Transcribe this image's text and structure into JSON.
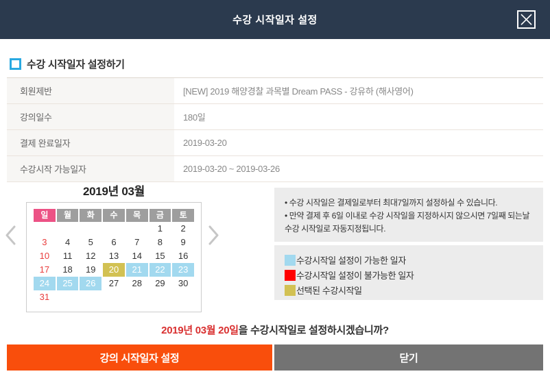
{
  "header": {
    "title": "수강 시작일자 설정"
  },
  "section": {
    "title": "수강 시작일자 설정하기"
  },
  "info_table": {
    "rows": [
      {
        "label": "회원제반",
        "value": "[NEW] 2019 해양경찰 과목별 Dream PASS - 강유하 (해사영어)"
      },
      {
        "label": "강의일수",
        "value": "180일"
      },
      {
        "label": "결제 완료일자",
        "value": "2019-03-20"
      },
      {
        "label": "수강시작 가능일자",
        "value": "2019-03-20 ~ 2019-03-26"
      }
    ]
  },
  "calendar": {
    "title": "2019년 03월",
    "weekdays": [
      "일",
      "월",
      "화",
      "수",
      "목",
      "금",
      "토"
    ],
    "weeks": [
      [
        "",
        "",
        "",
        "",
        "",
        "1",
        "2"
      ],
      [
        "3",
        "4",
        "5",
        "6",
        "7",
        "8",
        "9"
      ],
      [
        "10",
        "11",
        "12",
        "13",
        "14",
        "15",
        "16"
      ],
      [
        "17",
        "18",
        "19",
        "20",
        "21",
        "22",
        "23"
      ],
      [
        "24",
        "25",
        "26",
        "27",
        "28",
        "29",
        "30"
      ],
      [
        "31",
        "",
        "",
        "",
        "",
        "",
        ""
      ]
    ],
    "selected_dates": [
      "20"
    ],
    "available_dates": [
      "21",
      "22",
      "23",
      "24",
      "25",
      "26"
    ]
  },
  "notes": [
    "• 수강 시작일은 결제일로부터 최대7일까지 설정하실 수 있습니다.",
    "• 만약 결제 후 6일 이내로 수강 시작일을 지정하시지 않으시면 7일째 되는날 수강 시작일로 자동지정됩니다."
  ],
  "legend": [
    {
      "color": "#a2d9ef",
      "label": "수강시작일 설정이 가능한 일자"
    },
    {
      "color": "#ff0000",
      "label": "수강시작일 설정이 불가능한 일자"
    },
    {
      "color": "#d2c153",
      "label": "선택된 수강시작일"
    }
  ],
  "confirm": {
    "date": "2019년 03월 20일",
    "question": "을 수강시작일로 설정하시겠습니까?"
  },
  "buttons": {
    "confirm": "강의 시작일자 설정",
    "close": "닫기"
  },
  "icons": {
    "close": "close-icon",
    "prev": "chevron-left-icon",
    "next": "chevron-right-icon",
    "bullet": "square-bullet-icon"
  },
  "colors": {
    "header_bg": "#2b3a4e",
    "accent_blue": "#29a9e1",
    "sunday_header_pink": "#ec5285",
    "weekday_gray": "#9e9e9e",
    "sunday_red": "#e93c3c",
    "selected_yellow": "#d2c153",
    "available_blue": "#a2d9ef",
    "unavailable_red": "#ff0000",
    "button_orange": "#f94e0c",
    "button_gray": "#737373",
    "panel_bg": "#ececec",
    "confirm_red": "#d93030"
  }
}
